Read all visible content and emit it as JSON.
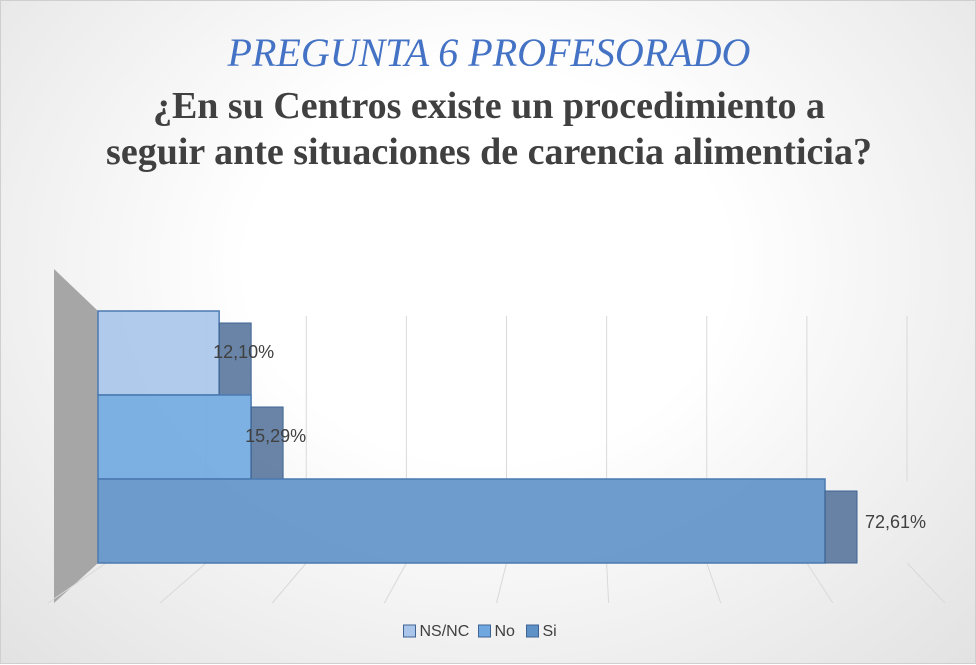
{
  "chart_data": {
    "type": "bar3d",
    "title": "PREGUNTA 6 PROFESORADO",
    "subtitle": "¿En su Centros existe un procedimiento a seguir ante situaciones de carencia alimenticia?",
    "series": [
      {
        "name": "NS/NC",
        "color": "#a9c5ea",
        "values": [
          12.1
        ],
        "value_labels": [
          "12,10%"
        ]
      },
      {
        "name": "No",
        "color": "#6fa8e0",
        "values": [
          15.29
        ],
        "value_labels": [
          "15,29%"
        ]
      },
      {
        "name": "Si",
        "color": "#5e91c6",
        "values": [
          72.61
        ],
        "value_labels": [
          "72,61%"
        ]
      }
    ],
    "xlim": [
      0,
      80
    ],
    "xticks": [
      0,
      10,
      20,
      30,
      40,
      50,
      60,
      70,
      80
    ],
    "grid": true
  }
}
